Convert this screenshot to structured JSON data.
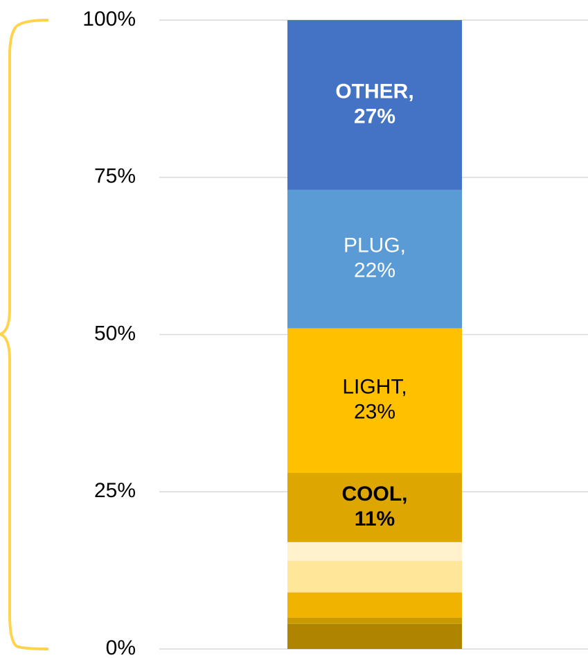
{
  "chart_data": {
    "type": "stacked_bar",
    "categories": [
      null
    ],
    "ylim": [
      0,
      100
    ],
    "yticks": [
      {
        "value": 0,
        "label": "0%"
      },
      {
        "value": 25,
        "label": "25%"
      },
      {
        "value": 50,
        "label": "50%"
      },
      {
        "value": 75,
        "label": "75%"
      },
      {
        "value": 100,
        "label": "100%"
      }
    ],
    "grid": true,
    "series": [
      {
        "color": "#ae8400",
        "values": [
          4
        ]
      },
      {
        "color": "#c99b00",
        "values": [
          1
        ]
      },
      {
        "color": "#f0b400",
        "values": [
          4
        ]
      },
      {
        "color": "#ffe699",
        "values": [
          5
        ]
      },
      {
        "color": "#fff2cc",
        "values": [
          3
        ]
      },
      {
        "name": "COOL,",
        "color": "#dda600",
        "values": [
          11
        ],
        "value_labels": [
          "11%"
        ],
        "label_color": "#000000",
        "label_bold": true
      },
      {
        "name": "LIGHT,",
        "color": "#ffc000",
        "values": [
          23
        ],
        "value_labels": [
          "23%"
        ],
        "label_color": "#000000",
        "label_bold": false
      },
      {
        "name": "PLUG,",
        "color": "#5b9bd5",
        "values": [
          22
        ],
        "value_labels": [
          "22%"
        ],
        "label_color": "#ffffff",
        "label_bold": false
      },
      {
        "name": "OTHER,",
        "color": "#4472c4",
        "values": [
          27
        ],
        "value_labels": [
          "27%"
        ],
        "label_color": "#ffffff",
        "label_bold": true
      }
    ]
  }
}
